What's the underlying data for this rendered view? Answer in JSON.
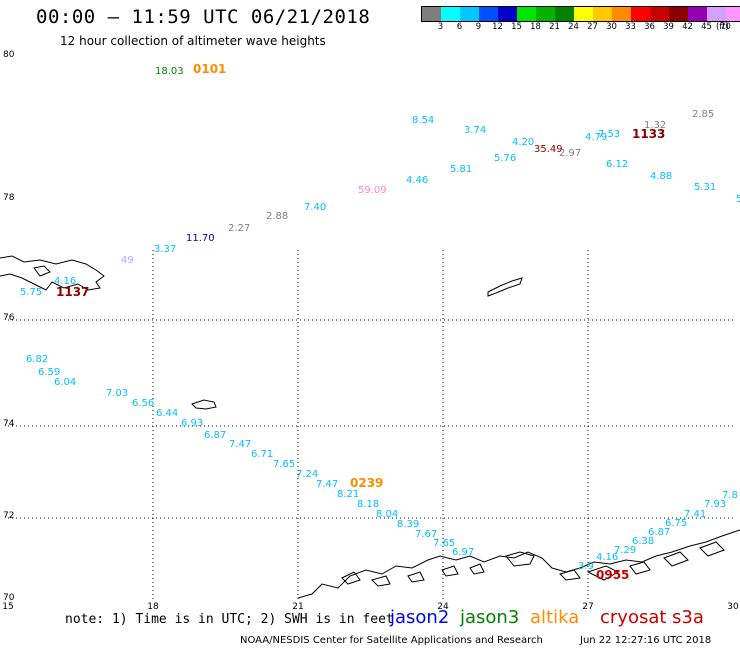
{
  "title": "00:00 – 11:59 UTC 06/21/2018",
  "subtitle": "12 hour collection of altimeter wave heights",
  "legend": {
    "unit": "(ft)",
    "swatches": [
      {
        "color": "#7f7f7f",
        "label": ""
      },
      {
        "color": "#00ffff",
        "label": "3"
      },
      {
        "color": "#00c8ff",
        "label": "6"
      },
      {
        "color": "#0050ff",
        "label": "9"
      },
      {
        "color": "#0000c8",
        "label": "12"
      },
      {
        "color": "#00e600",
        "label": "15"
      },
      {
        "color": "#00b400",
        "label": "18"
      },
      {
        "color": "#008200",
        "label": "21"
      },
      {
        "color": "#ffff00",
        "label": "24"
      },
      {
        "color": "#ffc800",
        "label": "27"
      },
      {
        "color": "#ff8c00",
        "label": "30"
      },
      {
        "color": "#ff0000",
        "label": "33"
      },
      {
        "color": "#c80000",
        "label": "36"
      },
      {
        "color": "#8c0000",
        "label": "39"
      },
      {
        "color": "#9600b4",
        "label": "42"
      },
      {
        "color": "#d2a0ff",
        "label": "45"
      },
      {
        "color": "#ff96ff",
        "label": "70"
      },
      {
        "color": "#000000",
        "label": ""
      }
    ]
  },
  "axes": {
    "lat_labels": [
      "80",
      "78",
      "76",
      "74",
      "72",
      "70"
    ],
    "lon_labels": [
      "15",
      "18",
      "21",
      "24",
      "27",
      "30"
    ]
  },
  "satellite_colors": {
    "jason2": "#0000ff",
    "jason3": "#008200",
    "altika": "#ff8c00",
    "cryosat": "#c80000",
    "s3a": "#c80000"
  },
  "observations": [
    {
      "text": "18.03",
      "color": "#008200"
    },
    {
      "text": "0101",
      "color": "#ff8c00"
    },
    {
      "text": "8.54",
      "color": "#00bfff"
    },
    {
      "text": "3.74",
      "color": "#00bfff"
    },
    {
      "text": "4.20",
      "color": "#00bfff"
    },
    {
      "text": "35.49",
      "color": "#8c0000"
    },
    {
      "text": "2.97",
      "color": "#7f7f7f"
    },
    {
      "text": "4.79",
      "color": "#00bfff"
    },
    {
      "text": "7.53",
      "color": "#00bfff"
    },
    {
      "text": "1.32",
      "color": "#7f7f7f"
    },
    {
      "text": "1133",
      "color": "#8c0000"
    },
    {
      "text": "2.85",
      "color": "#7f7f7f"
    },
    {
      "text": "5.76",
      "color": "#00bfff"
    },
    {
      "text": "5.81",
      "color": "#00bfff"
    },
    {
      "text": "6.12",
      "color": "#00bfff"
    },
    {
      "text": "4.88",
      "color": "#00bfff"
    },
    {
      "text": "5.31",
      "color": "#00bfff"
    },
    {
      "text": "5",
      "color": "#00bfff"
    },
    {
      "text": "4.46",
      "color": "#00bfff"
    },
    {
      "text": "59.09",
      "color": "#ff7fe0"
    },
    {
      "text": "7.40",
      "color": "#00bfff"
    },
    {
      "text": "2.88",
      "color": "#7f7f7f"
    },
    {
      "text": "2.27",
      "color": "#7f7f7f"
    },
    {
      "text": "11.70",
      "color": "#0000c8"
    },
    {
      "text": "3.37",
      "color": "#00bfff"
    },
    {
      "text": "49",
      "color": "#c8a0ff"
    },
    {
      "text": "4.16",
      "color": "#00bfff"
    },
    {
      "text": "5.75",
      "color": "#00bfff"
    },
    {
      "text": "1137",
      "color": "#8c0000"
    },
    {
      "text": "6.82",
      "color": "#00bfff"
    },
    {
      "text": "6.59",
      "color": "#00bfff"
    },
    {
      "text": "6.04",
      "color": "#00bfff"
    },
    {
      "text": "7.03",
      "color": "#00bfff"
    },
    {
      "text": "6.56",
      "color": "#00bfff"
    },
    {
      "text": "6.44",
      "color": "#00bfff"
    },
    {
      "text": "6.93",
      "color": "#00bfff"
    },
    {
      "text": "6.87",
      "color": "#00bfff"
    },
    {
      "text": "7.47",
      "color": "#00bfff"
    },
    {
      "text": "6.71",
      "color": "#00bfff"
    },
    {
      "text": "7.65",
      "color": "#00bfff"
    },
    {
      "text": "7.24",
      "color": "#00bfff"
    },
    {
      "text": "7.47",
      "color": "#00bfff"
    },
    {
      "text": "0239",
      "color": "#ff8c00"
    },
    {
      "text": "8.21",
      "color": "#00bfff"
    },
    {
      "text": "8.18",
      "color": "#00bfff"
    },
    {
      "text": "8.04",
      "color": "#00bfff"
    },
    {
      "text": "8.39",
      "color": "#00bfff"
    },
    {
      "text": "7.67",
      "color": "#00bfff"
    },
    {
      "text": "7.65",
      "color": "#00bfff"
    },
    {
      "text": "6.97",
      "color": "#00bfff"
    },
    {
      "text": "7.8",
      "color": "#00bfff"
    },
    {
      "text": "7.93",
      "color": "#00bfff"
    },
    {
      "text": "7.41",
      "color": "#00bfff"
    },
    {
      "text": "6.75",
      "color": "#00bfff"
    },
    {
      "text": "6.87",
      "color": "#00bfff"
    },
    {
      "text": "6.38",
      "color": "#00bfff"
    },
    {
      "text": "7.29",
      "color": "#00bfff"
    },
    {
      "text": "4.16",
      "color": "#00bfff"
    },
    {
      "text": "3.9",
      "color": "#00bfff"
    },
    {
      "text": "0955",
      "color": "#c80000"
    }
  ],
  "note": "note: 1) Time is in UTC; 2) SWH is in feet",
  "satellites": [
    "jason2",
    "jason3",
    "altika",
    "cryosat",
    "s3a"
  ],
  "footer": {
    "credit": "NOAA/NESDIS Center for Satellite Applications and Research",
    "timestamp": "Jun 22 12:27:16 UTC 2018"
  }
}
